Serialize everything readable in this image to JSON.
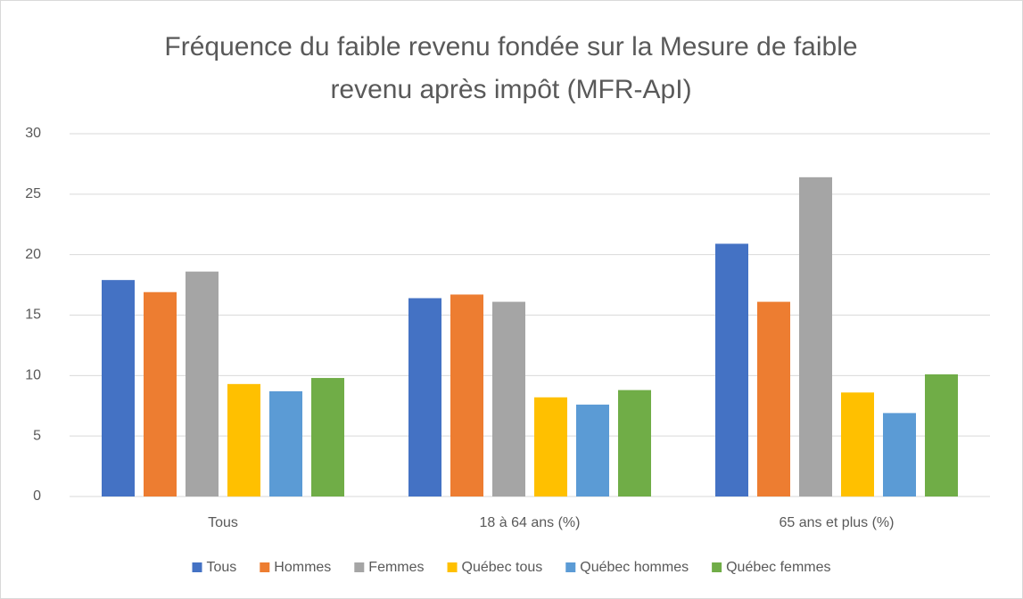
{
  "chart_data": {
    "type": "bar",
    "title": [
      "Fréquence du faible revenu fondée sur la Mesure de faible",
      "revenu après impôt (MFR-ApI)"
    ],
    "categories": [
      "Tous",
      "18 à 64 ans (%)",
      "65 ans et plus (%)"
    ],
    "series": [
      {
        "name": "Tous",
        "color": "#4472c4",
        "values": [
          17.9,
          16.4,
          20.9
        ]
      },
      {
        "name": "Hommes",
        "color": "#ed7d31",
        "values": [
          16.9,
          16.7,
          16.1
        ]
      },
      {
        "name": "Femmes",
        "color": "#a5a5a5",
        "values": [
          18.6,
          16.1,
          26.4
        ]
      },
      {
        "name": "Québec tous",
        "color": "#ffc000",
        "values": [
          9.3,
          8.2,
          8.6
        ]
      },
      {
        "name": "Québec hommes",
        "color": "#5b9bd5",
        "values": [
          8.7,
          7.6,
          6.9
        ]
      },
      {
        "name": "Québec femmes",
        "color": "#70ad47",
        "values": [
          9.8,
          8.8,
          10.1
        ]
      }
    ],
    "ylim": [
      0,
      30
    ],
    "yticks": [
      0,
      5,
      10,
      15,
      20,
      25,
      30
    ],
    "grid": true,
    "legend": "bottom"
  }
}
